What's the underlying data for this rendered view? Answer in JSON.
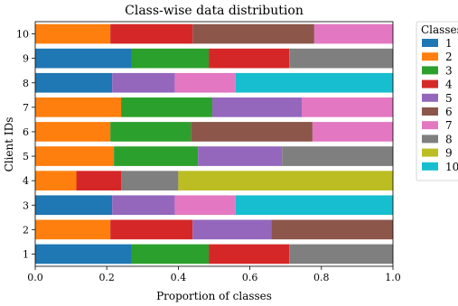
{
  "chart_data": {
    "type": "bar",
    "orientation": "horizontal",
    "stacked": true,
    "title": "Class-wise data distribution",
    "xlabel": "Proportion of classes",
    "ylabel": "Client IDs",
    "xlim": [
      0,
      1
    ],
    "x_ticks": [
      "0.0",
      "0.2",
      "0.4",
      "0.6",
      "0.8",
      "1.0"
    ],
    "categories": [
      "1",
      "2",
      "3",
      "4",
      "5",
      "6",
      "7",
      "8",
      "9",
      "10"
    ],
    "grid": false,
    "legend": {
      "title": "Classes",
      "placement": "outside-top-right"
    },
    "series": [
      {
        "name": "1",
        "color": "#1f77b4",
        "values": [
          0.27,
          0.0,
          0.215,
          0.0,
          0.0,
          0.0,
          0.0,
          0.215,
          0.27,
          0.0
        ]
      },
      {
        "name": "2",
        "color": "#ff7f0e",
        "values": [
          0.0,
          0.21,
          0.0,
          0.115,
          0.22,
          0.21,
          0.24,
          0.0,
          0.0,
          0.21
        ]
      },
      {
        "name": "3",
        "color": "#2ca02c",
        "values": [
          0.215,
          0.0,
          0.0,
          0.0,
          0.235,
          0.225,
          0.255,
          0.0,
          0.215,
          0.0
        ]
      },
      {
        "name": "4",
        "color": "#d62728",
        "values": [
          0.225,
          0.23,
          0.0,
          0.125,
          0.0,
          0.0,
          0.0,
          0.0,
          0.225,
          0.23
        ]
      },
      {
        "name": "5",
        "color": "#9467bd",
        "values": [
          0.0,
          0.22,
          0.175,
          0.0,
          0.235,
          0.0,
          0.25,
          0.175,
          0.0,
          0.0
        ]
      },
      {
        "name": "6",
        "color": "#8c564b",
        "values": [
          0.0,
          0.34,
          0.0,
          0.0,
          0.0,
          0.34,
          0.0,
          0.0,
          0.0,
          0.34
        ]
      },
      {
        "name": "7",
        "color": "#e377c2",
        "values": [
          0.0,
          0.0,
          0.17,
          0.0,
          0.0,
          0.225,
          0.255,
          0.17,
          0.0,
          0.22
        ]
      },
      {
        "name": "8",
        "color": "#7f7f7f",
        "values": [
          0.29,
          0.0,
          0.0,
          0.16,
          0.31,
          0.0,
          0.0,
          0.0,
          0.29,
          0.0
        ]
      },
      {
        "name": "9",
        "color": "#bcbd22",
        "values": [
          0.0,
          0.0,
          0.0,
          0.6,
          0.0,
          0.0,
          0.0,
          0.0,
          0.0,
          0.0
        ]
      },
      {
        "name": "10",
        "color": "#17becf",
        "values": [
          0.0,
          0.0,
          0.44,
          0.0,
          0.0,
          0.0,
          0.0,
          0.44,
          0.0,
          0.0
        ]
      }
    ]
  }
}
